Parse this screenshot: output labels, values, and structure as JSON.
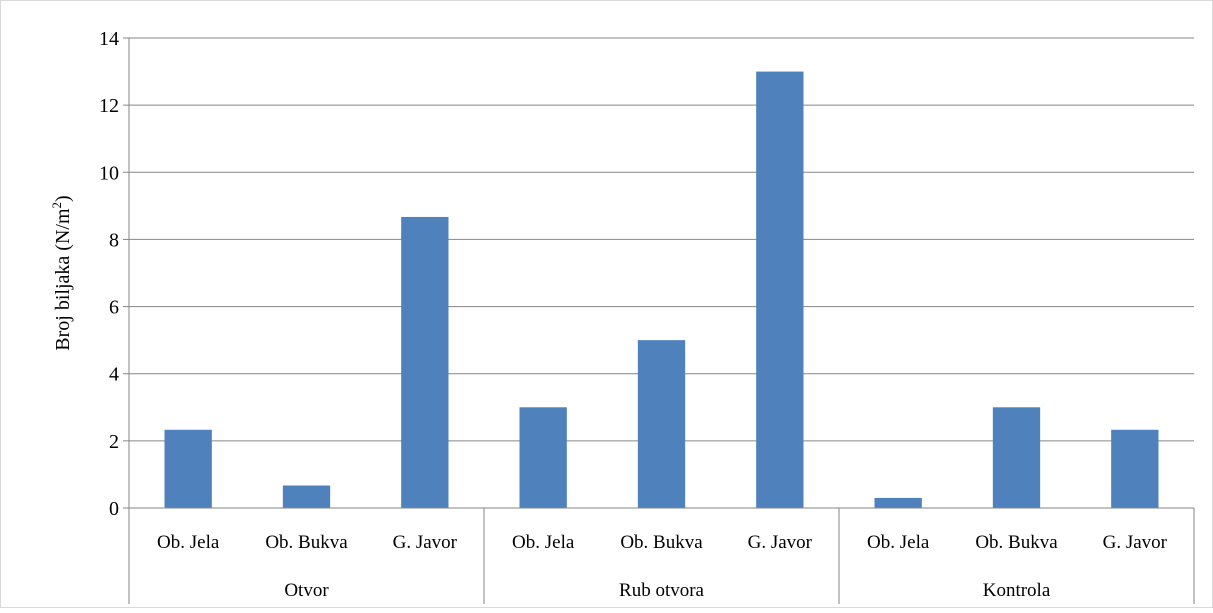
{
  "chart_data": {
    "type": "bar",
    "ylabel": "Broj biljaka (N/m",
    "ylabel_superscript": "2",
    "ylabel_close": ")",
    "ylim": [
      0,
      14
    ],
    "yticks": [
      0,
      2,
      4,
      6,
      8,
      10,
      12,
      14
    ],
    "grid": true,
    "legend": "none",
    "groups": [
      {
        "name": "Otvor",
        "categories": [
          "Ob. Jela",
          "Ob. Bukva",
          "G. Javor"
        ],
        "values": [
          2.33,
          0.67,
          8.67
        ]
      },
      {
        "name": "Rub otvora",
        "categories": [
          "Ob. Jela",
          "Ob. Bukva",
          "G. Javor"
        ],
        "values": [
          3.0,
          5.0,
          13.0
        ]
      },
      {
        "name": "Kontrola",
        "categories": [
          "Ob. Jela",
          "Ob. Bukva",
          "G. Javor"
        ],
        "values": [
          0.3,
          3.0,
          2.33
        ]
      }
    ],
    "colors": {
      "bar": "#4f81bd",
      "grid": "#868686",
      "axis": "#868686",
      "frame": "#d9d9d9"
    }
  }
}
